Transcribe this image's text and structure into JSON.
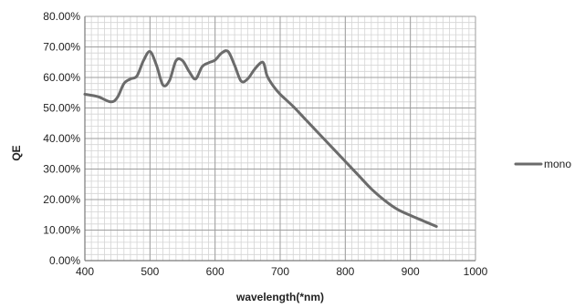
{
  "chart_data": {
    "type": "line",
    "title": "",
    "xlabel": "wavelength(*nm)",
    "ylabel": "QE",
    "xlim": [
      400,
      1000
    ],
    "ylim": [
      0,
      0.8
    ],
    "x_ticks": [
      400,
      500,
      600,
      700,
      800,
      900,
      1000
    ],
    "y_ticks": [
      0,
      0.1,
      0.2,
      0.3,
      0.4,
      0.5,
      0.6,
      0.7,
      0.8
    ],
    "x_tick_labels": [
      "400",
      "500",
      "600",
      "700",
      "800",
      "900",
      "1000"
    ],
    "y_tick_labels": [
      "0.00%",
      "10.00%",
      "20.00%",
      "30.00%",
      "40.00%",
      "50.00%",
      "60.00%",
      "70.00%",
      "80.00%"
    ],
    "grid": true,
    "legend_position": "right",
    "series": [
      {
        "name": "mono",
        "color": "#6b6b6b",
        "points": [
          [
            400,
            0.545
          ],
          [
            420,
            0.537
          ],
          [
            440,
            0.52
          ],
          [
            450,
            0.535
          ],
          [
            460,
            0.58
          ],
          [
            470,
            0.595
          ],
          [
            480,
            0.605
          ],
          [
            490,
            0.655
          ],
          [
            500,
            0.685
          ],
          [
            510,
            0.64
          ],
          [
            520,
            0.575
          ],
          [
            530,
            0.59
          ],
          [
            540,
            0.655
          ],
          [
            550,
            0.655
          ],
          [
            560,
            0.62
          ],
          [
            570,
            0.595
          ],
          [
            580,
            0.635
          ],
          [
            590,
            0.648
          ],
          [
            600,
            0.657
          ],
          [
            610,
            0.68
          ],
          [
            620,
            0.685
          ],
          [
            630,
            0.64
          ],
          [
            640,
            0.588
          ],
          [
            650,
            0.595
          ],
          [
            660,
            0.625
          ],
          [
            670,
            0.648
          ],
          [
            675,
            0.645
          ],
          [
            680,
            0.605
          ],
          [
            690,
            0.57
          ],
          [
            700,
            0.545
          ],
          [
            720,
            0.505
          ],
          [
            740,
            0.46
          ],
          [
            760,
            0.415
          ],
          [
            780,
            0.37
          ],
          [
            800,
            0.325
          ],
          [
            820,
            0.28
          ],
          [
            840,
            0.235
          ],
          [
            860,
            0.198
          ],
          [
            880,
            0.168
          ],
          [
            900,
            0.148
          ],
          [
            920,
            0.13
          ],
          [
            940,
            0.112
          ]
        ]
      }
    ]
  }
}
